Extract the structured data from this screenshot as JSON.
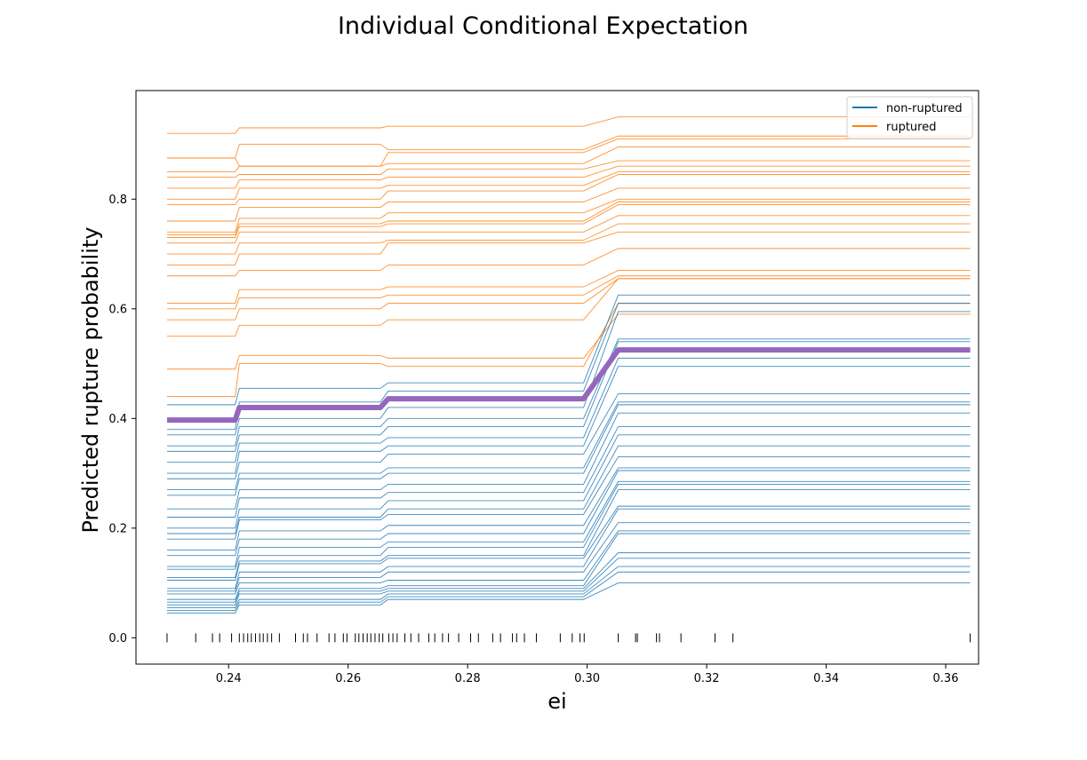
{
  "chart_data": {
    "type": "line",
    "title": "Individual Conditional Expectation",
    "xlabel": "ei",
    "ylabel": "Predicted rupture probability",
    "xlim": [
      0.2245,
      0.3655
    ],
    "ylim": [
      -0.048,
      0.998
    ],
    "x_ticks": [
      0.24,
      0.26,
      0.28,
      0.3,
      0.32,
      0.34,
      0.36
    ],
    "x_tick_labels": [
      "0.24",
      "0.26",
      "0.28",
      "0.30",
      "0.32",
      "0.34",
      "0.36"
    ],
    "y_ticks": [
      0.0,
      0.2,
      0.4,
      0.6,
      0.8
    ],
    "y_tick_labels": [
      "0.0",
      "0.2",
      "0.4",
      "0.6",
      "0.8"
    ],
    "grid": false,
    "legend_position": "top-right",
    "legend": [
      {
        "label": "non-ruptured",
        "color": "#1f77b4"
      },
      {
        "label": "ruptured",
        "color": "#ff7f0e"
      }
    ],
    "x_grid": [
      0.2297,
      0.2411,
      0.2418,
      0.2654,
      0.2667,
      0.2994,
      0.3052,
      0.3641
    ],
    "pd_series": {
      "name": "",
      "color": "#9467bd",
      "y": [
        0.397,
        0.397,
        0.42,
        0.42,
        0.436,
        0.436,
        0.525,
        0.525
      ]
    },
    "series": [
      {
        "group": "ruptured",
        "y": [
          0.92,
          0.92,
          0.93,
          0.93,
          0.933,
          0.933,
          0.95,
          0.95
        ]
      },
      {
        "group": "ruptured",
        "y": [
          0.875,
          0.875,
          0.9,
          0.9,
          0.89,
          0.89,
          0.915,
          0.915
        ]
      },
      {
        "group": "ruptured",
        "y": [
          0.875,
          0.875,
          0.86,
          0.86,
          0.885,
          0.885,
          0.91,
          0.91
        ]
      },
      {
        "group": "ruptured",
        "y": [
          0.85,
          0.85,
          0.86,
          0.86,
          0.865,
          0.865,
          0.895,
          0.895
        ]
      },
      {
        "group": "ruptured",
        "y": [
          0.84,
          0.84,
          0.845,
          0.845,
          0.855,
          0.855,
          0.87,
          0.87
        ]
      },
      {
        "group": "ruptured",
        "y": [
          0.82,
          0.82,
          0.835,
          0.835,
          0.84,
          0.84,
          0.86,
          0.86
        ]
      },
      {
        "group": "ruptured",
        "y": [
          0.8,
          0.8,
          0.82,
          0.82,
          0.825,
          0.825,
          0.85,
          0.85
        ]
      },
      {
        "group": "ruptured",
        "y": [
          0.79,
          0.79,
          0.8,
          0.8,
          0.815,
          0.815,
          0.845,
          0.845
        ]
      },
      {
        "group": "ruptured",
        "y": [
          0.76,
          0.76,
          0.785,
          0.785,
          0.795,
          0.795,
          0.82,
          0.82
        ]
      },
      {
        "group": "ruptured",
        "y": [
          0.74,
          0.74,
          0.765,
          0.765,
          0.775,
          0.775,
          0.8,
          0.8
        ]
      },
      {
        "group": "ruptured",
        "y": [
          0.735,
          0.735,
          0.755,
          0.755,
          0.76,
          0.76,
          0.795,
          0.795
        ]
      },
      {
        "group": "ruptured",
        "y": [
          0.73,
          0.73,
          0.75,
          0.75,
          0.755,
          0.755,
          0.79,
          0.79
        ]
      },
      {
        "group": "ruptured",
        "y": [
          0.72,
          0.72,
          0.74,
          0.74,
          0.74,
          0.74,
          0.77,
          0.77
        ]
      },
      {
        "group": "ruptured",
        "y": [
          0.7,
          0.7,
          0.72,
          0.72,
          0.725,
          0.725,
          0.755,
          0.755
        ]
      },
      {
        "group": "ruptured",
        "y": [
          0.68,
          0.68,
          0.7,
          0.7,
          0.72,
          0.72,
          0.74,
          0.74
        ]
      },
      {
        "group": "ruptured",
        "y": [
          0.66,
          0.66,
          0.67,
          0.67,
          0.68,
          0.68,
          0.71,
          0.71
        ]
      },
      {
        "group": "ruptured",
        "y": [
          0.61,
          0.61,
          0.635,
          0.635,
          0.64,
          0.64,
          0.67,
          0.67
        ]
      },
      {
        "group": "ruptured",
        "y": [
          0.6,
          0.6,
          0.62,
          0.62,
          0.625,
          0.625,
          0.66,
          0.66
        ]
      },
      {
        "group": "ruptured",
        "y": [
          0.58,
          0.58,
          0.6,
          0.6,
          0.61,
          0.61,
          0.655,
          0.655
        ]
      },
      {
        "group": "ruptured",
        "y": [
          0.55,
          0.55,
          0.57,
          0.57,
          0.58,
          0.58,
          0.655,
          0.655
        ]
      },
      {
        "group": "ruptured",
        "y": [
          0.49,
          0.49,
          0.515,
          0.515,
          0.51,
          0.51,
          0.59,
          0.59
        ]
      },
      {
        "group": "ruptured",
        "y": [
          0.44,
          0.44,
          0.5,
          0.5,
          0.495,
          0.495,
          0.61,
          0.61
        ]
      },
      {
        "group": "non-ruptured",
        "y": [
          0.425,
          0.425,
          0.455,
          0.455,
          0.465,
          0.465,
          0.625,
          0.625
        ]
      },
      {
        "group": "non-ruptured",
        "y": [
          0.38,
          0.38,
          0.43,
          0.43,
          0.45,
          0.45,
          0.61,
          0.61
        ]
      },
      {
        "group": "non-ruptured",
        "y": [
          0.37,
          0.37,
          0.4,
          0.4,
          0.42,
          0.42,
          0.595,
          0.595
        ]
      },
      {
        "group": "non-ruptured",
        "y": [
          0.35,
          0.35,
          0.385,
          0.385,
          0.4,
          0.4,
          0.545,
          0.545
        ]
      },
      {
        "group": "non-ruptured",
        "y": [
          0.34,
          0.34,
          0.37,
          0.37,
          0.385,
          0.385,
          0.54,
          0.54
        ]
      },
      {
        "group": "non-ruptured",
        "y": [
          0.32,
          0.32,
          0.355,
          0.355,
          0.365,
          0.365,
          0.51,
          0.51
        ]
      },
      {
        "group": "non-ruptured",
        "y": [
          0.3,
          0.3,
          0.34,
          0.34,
          0.35,
          0.35,
          0.495,
          0.495
        ]
      },
      {
        "group": "non-ruptured",
        "y": [
          0.29,
          0.29,
          0.32,
          0.32,
          0.335,
          0.335,
          0.445,
          0.445
        ]
      },
      {
        "group": "non-ruptured",
        "y": [
          0.27,
          0.27,
          0.3,
          0.3,
          0.31,
          0.31,
          0.43,
          0.43
        ]
      },
      {
        "group": "non-ruptured",
        "y": [
          0.26,
          0.26,
          0.29,
          0.29,
          0.3,
          0.3,
          0.425,
          0.425
        ]
      },
      {
        "group": "non-ruptured",
        "y": [
          0.235,
          0.235,
          0.27,
          0.27,
          0.28,
          0.28,
          0.41,
          0.41
        ]
      },
      {
        "group": "non-ruptured",
        "y": [
          0.22,
          0.22,
          0.255,
          0.255,
          0.265,
          0.265,
          0.385,
          0.385
        ]
      },
      {
        "group": "non-ruptured",
        "y": [
          0.2,
          0.2,
          0.235,
          0.235,
          0.25,
          0.25,
          0.37,
          0.37
        ]
      },
      {
        "group": "non-ruptured",
        "y": [
          0.19,
          0.19,
          0.22,
          0.22,
          0.235,
          0.235,
          0.35,
          0.35
        ]
      },
      {
        "group": "non-ruptured",
        "y": [
          0.18,
          0.18,
          0.215,
          0.215,
          0.225,
          0.225,
          0.33,
          0.33
        ]
      },
      {
        "group": "non-ruptured",
        "y": [
          0.16,
          0.16,
          0.195,
          0.195,
          0.205,
          0.205,
          0.31,
          0.31
        ]
      },
      {
        "group": "non-ruptured",
        "y": [
          0.15,
          0.15,
          0.18,
          0.18,
          0.19,
          0.19,
          0.305,
          0.305
        ]
      },
      {
        "group": "non-ruptured",
        "y": [
          0.13,
          0.13,
          0.165,
          0.165,
          0.175,
          0.175,
          0.285,
          0.285
        ]
      },
      {
        "group": "non-ruptured",
        "y": [
          0.125,
          0.125,
          0.15,
          0.15,
          0.165,
          0.165,
          0.28,
          0.28
        ]
      },
      {
        "group": "non-ruptured",
        "y": [
          0.11,
          0.11,
          0.14,
          0.14,
          0.15,
          0.15,
          0.27,
          0.27
        ]
      },
      {
        "group": "non-ruptured",
        "y": [
          0.105,
          0.105,
          0.135,
          0.135,
          0.145,
          0.145,
          0.24,
          0.24
        ]
      },
      {
        "group": "non-ruptured",
        "y": [
          0.09,
          0.09,
          0.12,
          0.12,
          0.13,
          0.13,
          0.235,
          0.235
        ]
      },
      {
        "group": "non-ruptured",
        "y": [
          0.085,
          0.085,
          0.11,
          0.11,
          0.12,
          0.12,
          0.21,
          0.21
        ]
      },
      {
        "group": "non-ruptured",
        "y": [
          0.08,
          0.08,
          0.1,
          0.1,
          0.105,
          0.105,
          0.195,
          0.195
        ]
      },
      {
        "group": "non-ruptured",
        "y": [
          0.07,
          0.07,
          0.09,
          0.09,
          0.095,
          0.095,
          0.19,
          0.19
        ]
      },
      {
        "group": "non-ruptured",
        "y": [
          0.065,
          0.065,
          0.085,
          0.085,
          0.09,
          0.09,
          0.155,
          0.155
        ]
      },
      {
        "group": "non-ruptured",
        "y": [
          0.06,
          0.06,
          0.08,
          0.08,
          0.085,
          0.085,
          0.145,
          0.145
        ]
      },
      {
        "group": "non-ruptured",
        "y": [
          0.055,
          0.055,
          0.07,
          0.07,
          0.08,
          0.08,
          0.13,
          0.13
        ]
      },
      {
        "group": "non-ruptured",
        "y": [
          0.05,
          0.05,
          0.065,
          0.065,
          0.075,
          0.075,
          0.12,
          0.12
        ]
      },
      {
        "group": "non-ruptured",
        "y": [
          0.045,
          0.045,
          0.06,
          0.06,
          0.07,
          0.07,
          0.1,
          0.1
        ]
      }
    ],
    "rug_x": [
      0.2297,
      0.2345,
      0.2373,
      0.2385,
      0.2405,
      0.2418,
      0.2425,
      0.2432,
      0.2438,
      0.2445,
      0.2452,
      0.2458,
      0.2465,
      0.2472,
      0.2485,
      0.2512,
      0.2525,
      0.2532,
      0.2548,
      0.2568,
      0.2578,
      0.2592,
      0.2598,
      0.2612,
      0.2618,
      0.2625,
      0.2632,
      0.2638,
      0.2645,
      0.2652,
      0.2658,
      0.2668,
      0.2675,
      0.2682,
      0.2695,
      0.2705,
      0.2718,
      0.2735,
      0.2745,
      0.2758,
      0.2768,
      0.2785,
      0.2805,
      0.2818,
      0.2842,
      0.2855,
      0.2875,
      0.2882,
      0.2895,
      0.2915,
      0.2955,
      0.2975,
      0.2988,
      0.2995,
      0.3052,
      0.3081,
      0.3084,
      0.3116,
      0.3121,
      0.3157,
      0.3214,
      0.3244,
      0.3641
    ]
  }
}
